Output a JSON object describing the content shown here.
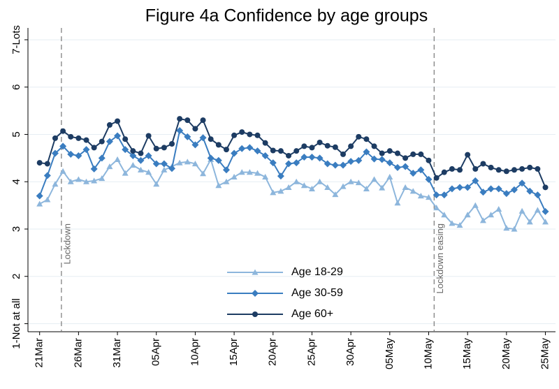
{
  "chart_data": {
    "type": "line",
    "title": "Figure 4a Confidence by age groups",
    "x": [
      0,
      1,
      2,
      3,
      4,
      5,
      6,
      7,
      8,
      9,
      10,
      11,
      12,
      13,
      14,
      15,
      16,
      17,
      18,
      19,
      20,
      21,
      22,
      23,
      24,
      25,
      26,
      27,
      28,
      29,
      30,
      31,
      32,
      33,
      34,
      35,
      36,
      37,
      38,
      39,
      40,
      41,
      42,
      43,
      44,
      45,
      46,
      47,
      48,
      49,
      50,
      51,
      52,
      53,
      54,
      55,
      56,
      57,
      58,
      59,
      60,
      61,
      62,
      63,
      64,
      65
    ],
    "xlim": [
      -1.5,
      66.3
    ],
    "xticks": [
      {
        "value": 0,
        "label": "21Mar"
      },
      {
        "value": 5,
        "label": "26Mar"
      },
      {
        "value": 10,
        "label": "31Mar"
      },
      {
        "value": 15,
        "label": "05Apr"
      },
      {
        "value": 20,
        "label": "10Apr"
      },
      {
        "value": 25,
        "label": "15Apr"
      },
      {
        "value": 30,
        "label": "20Apr"
      },
      {
        "value": 35,
        "label": "25Apr"
      },
      {
        "value": 40,
        "label": "30Apr"
      },
      {
        "value": 45,
        "label": "05May"
      },
      {
        "value": 50,
        "label": "10May"
      },
      {
        "value": 55,
        "label": "15May"
      },
      {
        "value": 60,
        "label": "20May"
      },
      {
        "value": 65,
        "label": "25May"
      }
    ],
    "ylim": [
      0.83,
      7.25
    ],
    "yticks": [
      {
        "value": 1,
        "label": "1-Not at all"
      },
      2,
      3,
      4,
      5,
      6,
      {
        "value": 7,
        "label": "7-Lots"
      }
    ],
    "grid": true,
    "legend": "bottom-center",
    "annotations": [
      {
        "x": 2.8,
        "text": "Lockdown"
      },
      {
        "x": 50.7,
        "text": "Lockdown easing"
      }
    ],
    "series": [
      {
        "name": "Age 18-29",
        "color": "#8db6dc",
        "marker": "triangle",
        "values": [
          3.53,
          3.62,
          3.95,
          4.22,
          4.0,
          4.05,
          4.0,
          4.02,
          4.07,
          4.32,
          4.47,
          4.18,
          4.35,
          4.25,
          4.2,
          3.95,
          4.25,
          4.32,
          4.4,
          4.42,
          4.38,
          4.17,
          4.47,
          3.92,
          4.0,
          4.1,
          4.2,
          4.2,
          4.18,
          4.1,
          3.77,
          3.8,
          3.88,
          4.0,
          3.92,
          3.85,
          4.0,
          3.88,
          3.73,
          3.9,
          4.0,
          3.98,
          3.85,
          4.05,
          3.87,
          4.1,
          3.55,
          3.88,
          3.8,
          3.7,
          3.67,
          3.45,
          3.3,
          3.12,
          3.08,
          3.3,
          3.5,
          3.18,
          3.3,
          3.42,
          3.02,
          3.0,
          3.38,
          3.15,
          3.4,
          3.15
        ]
      },
      {
        "name": "Age 30-59",
        "color": "#3a7dc0",
        "marker": "diamond",
        "values": [
          3.7,
          4.13,
          4.6,
          4.75,
          4.58,
          4.55,
          4.68,
          4.27,
          4.5,
          4.85,
          4.97,
          4.68,
          4.55,
          4.45,
          4.55,
          4.38,
          4.38,
          4.28,
          5.08,
          4.95,
          4.78,
          4.93,
          4.5,
          4.45,
          4.25,
          4.6,
          4.7,
          4.72,
          4.65,
          4.55,
          4.4,
          4.12,
          4.38,
          4.4,
          4.52,
          4.52,
          4.5,
          4.38,
          4.35,
          4.35,
          4.43,
          4.45,
          4.63,
          4.48,
          4.47,
          4.4,
          4.3,
          4.32,
          4.18,
          4.25,
          4.05,
          3.72,
          3.72,
          3.85,
          3.88,
          3.88,
          4.02,
          3.78,
          3.85,
          3.85,
          3.75,
          3.83,
          3.97,
          3.8,
          3.72,
          3.37
        ]
      },
      {
        "name": "Age 60+",
        "color": "#1d3c63",
        "marker": "circle",
        "values": [
          4.4,
          4.38,
          4.92,
          5.07,
          4.95,
          4.92,
          4.88,
          4.72,
          4.85,
          5.2,
          5.28,
          4.9,
          4.65,
          4.6,
          4.97,
          4.7,
          4.72,
          4.8,
          5.33,
          5.3,
          5.12,
          5.3,
          4.9,
          4.78,
          4.68,
          4.98,
          5.05,
          5.0,
          4.98,
          4.82,
          4.66,
          4.65,
          4.55,
          4.65,
          4.75,
          4.72,
          4.83,
          4.76,
          4.73,
          4.58,
          4.75,
          4.95,
          4.9,
          4.75,
          4.6,
          4.65,
          4.6,
          4.5,
          4.58,
          4.58,
          4.45,
          4.08,
          4.2,
          4.27,
          4.25,
          4.57,
          4.27,
          4.38,
          4.3,
          4.25,
          4.22,
          4.25,
          4.27,
          4.3,
          4.27,
          3.88
        ]
      }
    ]
  }
}
